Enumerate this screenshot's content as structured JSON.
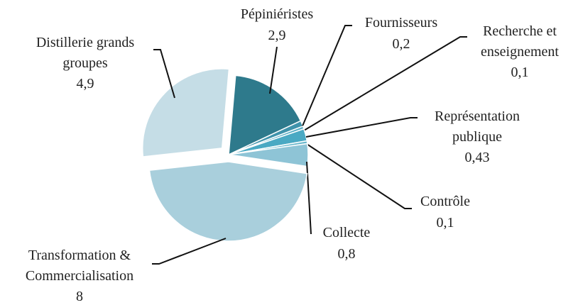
{
  "chart_data": {
    "type": "pie",
    "categories": [
      "Pépiniéristes",
      "Fournisseurs",
      "Recherche et enseignement",
      "Représentation publique",
      "Contrôle",
      "Collecte",
      "Transformation & Commercialisation",
      "Distillerie grands groupes"
    ],
    "values": [
      2.9,
      0.2,
      0.1,
      0.43,
      0.1,
      0.8,
      8,
      4.9
    ],
    "value_labels": [
      "2,9",
      "0,2",
      "0,1",
      "0,43",
      "0,1",
      "0,8",
      "8",
      "4,9"
    ],
    "colors": [
      "#2e7a8c",
      "#3f93ab",
      "#5aaec4",
      "#4aa9c3",
      "#6bb8cc",
      "#8ec4d6",
      "#a9cfdc",
      "#c5dde6"
    ]
  }
}
